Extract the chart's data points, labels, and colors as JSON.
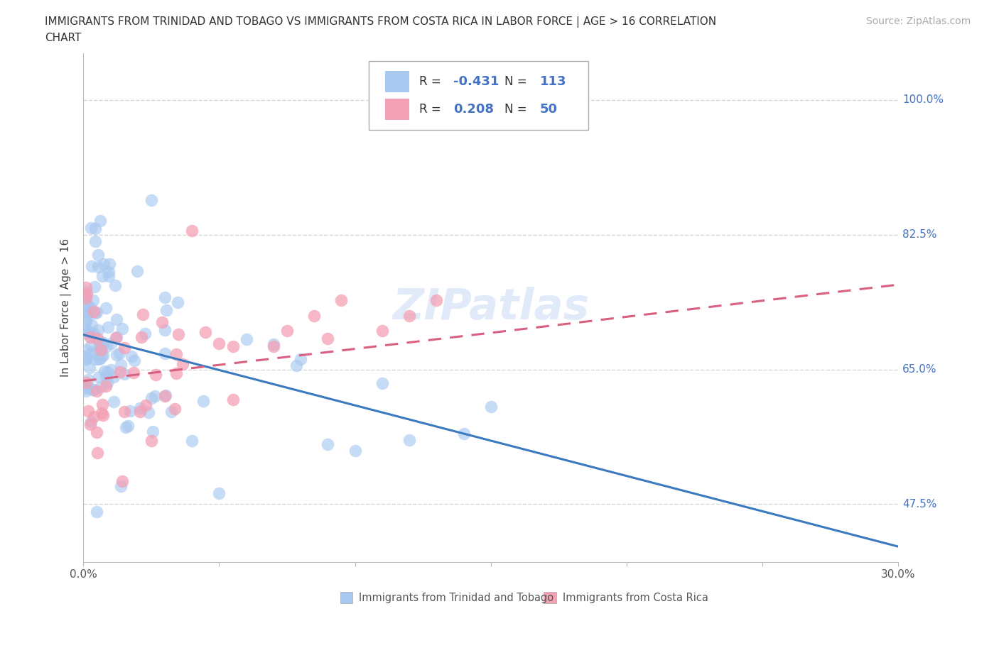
{
  "title_line1": "IMMIGRANTS FROM TRINIDAD AND TOBAGO VS IMMIGRANTS FROM COSTA RICA IN LABOR FORCE | AGE > 16 CORRELATION",
  "title_line2": "CHART",
  "source": "Source: ZipAtlas.com",
  "ylabel": "In Labor Force | Age > 16",
  "xlim": [
    0.0,
    0.3
  ],
  "ylim": [
    0.4,
    1.06
  ],
  "x_tick_labels": [
    "0.0%",
    "",
    "",
    "",
    "",
    "",
    "30.0%"
  ],
  "y_tick_values": [
    0.475,
    0.65,
    0.825,
    1.0
  ],
  "y_tick_labels": [
    "47.5%",
    "65.0%",
    "82.5%",
    "100.0%"
  ],
  "R_tt": -0.431,
  "N_tt": 113,
  "R_cr": 0.208,
  "N_cr": 50,
  "color_tt": "#a8c8f0",
  "color_cr": "#f4a0b5",
  "line_color_tt": "#3a7abf",
  "line_color_cr": "#d96080",
  "background_color": "#ffffff",
  "watermark": "ZIPatlas",
  "grid_color": "#cccccc",
  "tt_line_x0": 0.0,
  "tt_line_y0": 0.695,
  "tt_line_x1": 0.3,
  "tt_line_y1": 0.42,
  "cr_line_x0": 0.0,
  "cr_line_y0": 0.635,
  "cr_line_x1": 0.3,
  "cr_line_y1": 0.76,
  "legend_label_tt": "Immigrants from Trinidad and Tobago",
  "legend_label_cr": "Immigrants from Costa Rica"
}
